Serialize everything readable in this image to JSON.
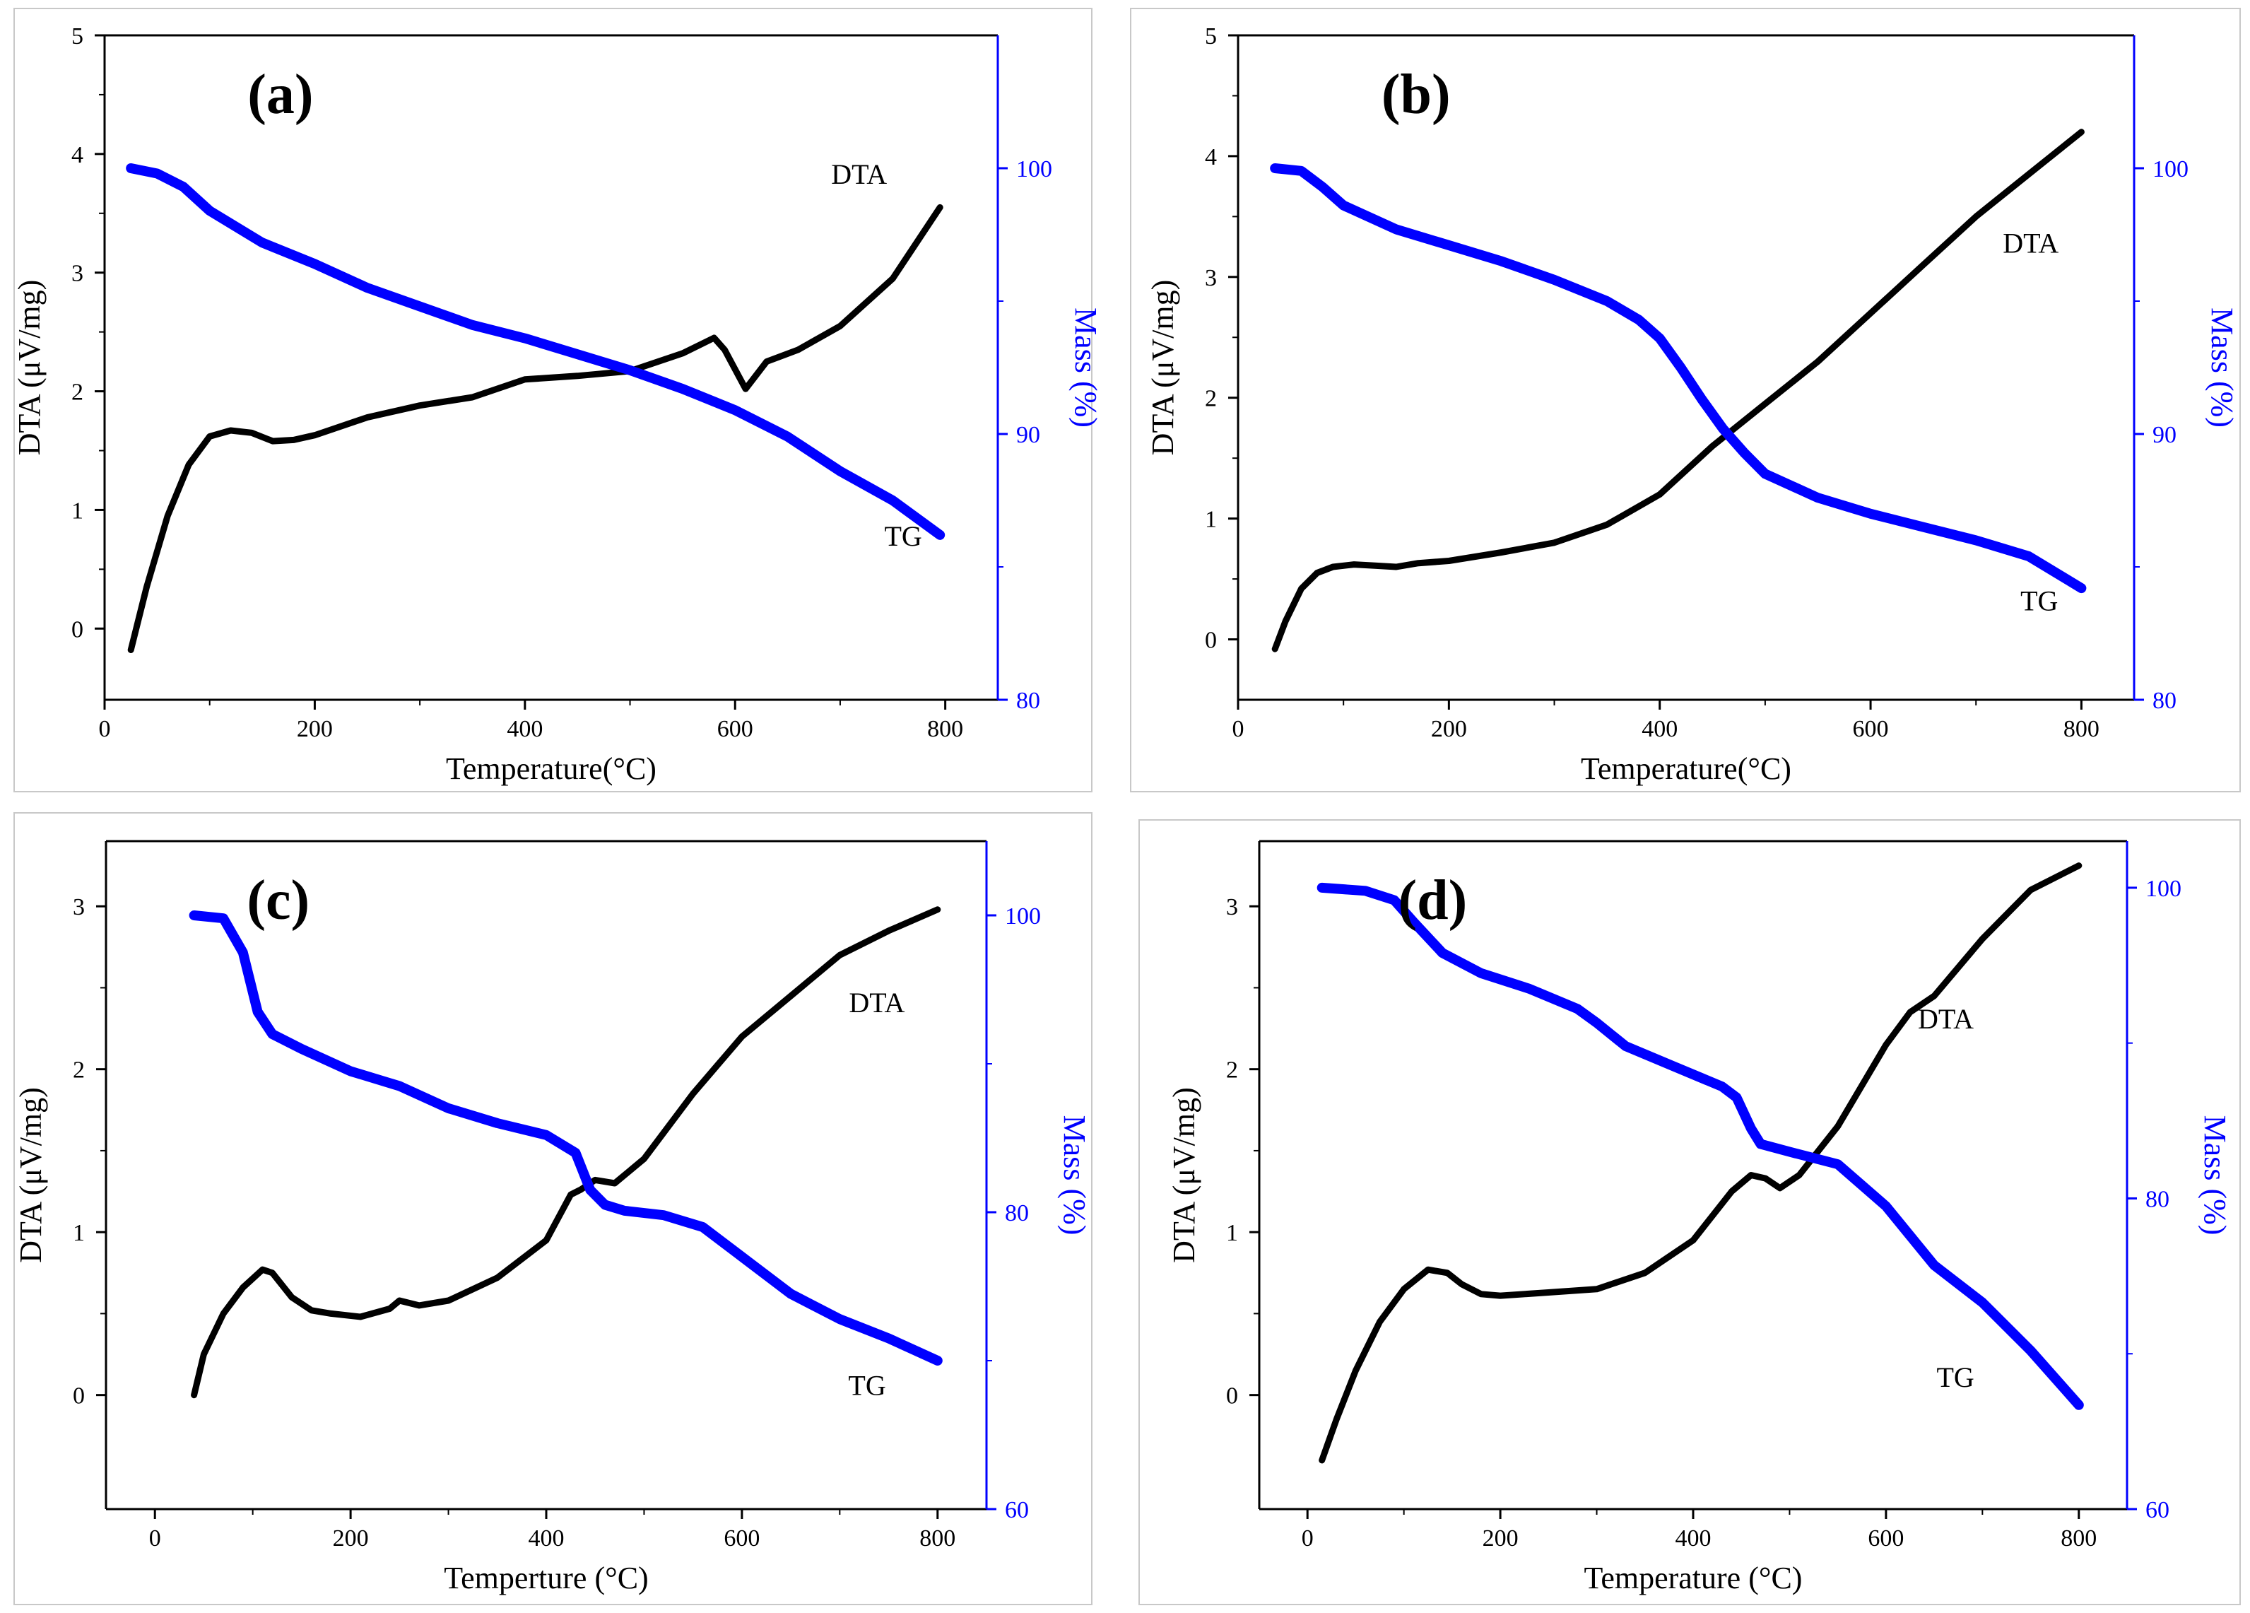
{
  "colors": {
    "dta": "#000000",
    "tg": "#0000ff",
    "axis": "#000000",
    "right_axis": "#0000ff",
    "frame": "#c8c8c8"
  },
  "chart_data": [
    {
      "type": "line",
      "panel_label": "(a)",
      "xlabel": "Temperature(°C)",
      "ylabel": "DTA (μV/mg)",
      "y2label": "Mass (%)",
      "xlim": [
        0,
        850
      ],
      "ylim": [
        -0.6,
        5
      ],
      "y2lim": [
        80,
        105
      ],
      "xticks": [
        0,
        200,
        400,
        600,
        800
      ],
      "yticks": [
        0,
        1,
        2,
        3,
        4,
        5
      ],
      "y2ticks": [
        80,
        90,
        100
      ],
      "series": [
        {
          "name": "DTA",
          "axis": "left",
          "x": [
            25,
            40,
            60,
            80,
            100,
            120,
            140,
            160,
            180,
            200,
            250,
            300,
            350,
            400,
            450,
            500,
            550,
            580,
            590,
            610,
            630,
            660,
            700,
            750,
            795
          ],
          "y": [
            -0.18,
            0.35,
            0.95,
            1.38,
            1.62,
            1.67,
            1.65,
            1.58,
            1.59,
            1.63,
            1.78,
            1.88,
            1.95,
            2.1,
            2.13,
            2.17,
            2.32,
            2.45,
            2.35,
            2.02,
            2.25,
            2.35,
            2.55,
            2.95,
            3.55
          ]
        },
        {
          "name": "TG",
          "axis": "right",
          "x": [
            25,
            50,
            75,
            100,
            150,
            200,
            250,
            300,
            350,
            400,
            450,
            500,
            550,
            600,
            650,
            700,
            750,
            795
          ],
          "y": [
            100,
            99.8,
            99.3,
            98.4,
            97.2,
            96.4,
            95.5,
            94.8,
            94.1,
            93.6,
            93.0,
            92.4,
            91.7,
            90.9,
            89.9,
            88.6,
            87.5,
            86.2
          ]
        }
      ],
      "annotations": [
        {
          "text": "DTA",
          "x": 718,
          "y": 3.75,
          "axis": "left"
        },
        {
          "text": "TG",
          "x": 760,
          "y": 0.7,
          "axis": "left"
        }
      ]
    },
    {
      "type": "line",
      "panel_label": "(b)",
      "xlabel": "Temperature(°C)",
      "ylabel": "DTA (μV/mg)",
      "y2label": "Mass (%)",
      "xlim": [
        0,
        850
      ],
      "ylim": [
        -0.5,
        5
      ],
      "y2lim": [
        80,
        105
      ],
      "xticks": [
        0,
        200,
        400,
        600,
        800
      ],
      "yticks": [
        0,
        1,
        2,
        3,
        4,
        5
      ],
      "y2ticks": [
        80,
        90,
        100
      ],
      "series": [
        {
          "name": "DTA",
          "axis": "left",
          "x": [
            35,
            45,
            60,
            75,
            90,
            110,
            130,
            150,
            170,
            200,
            250,
            300,
            350,
            400,
            450,
            500,
            550,
            600,
            650,
            700,
            750,
            800
          ],
          "y": [
            -0.08,
            0.15,
            0.42,
            0.55,
            0.6,
            0.62,
            0.61,
            0.6,
            0.63,
            0.65,
            0.72,
            0.8,
            0.95,
            1.2,
            1.6,
            1.95,
            2.3,
            2.7,
            3.1,
            3.5,
            3.85,
            4.2
          ]
        },
        {
          "name": "TG",
          "axis": "right",
          "x": [
            35,
            60,
            80,
            100,
            150,
            200,
            250,
            300,
            350,
            380,
            400,
            420,
            440,
            460,
            480,
            500,
            550,
            600,
            650,
            700,
            750,
            800
          ],
          "y": [
            100,
            99.9,
            99.3,
            98.6,
            97.7,
            97.1,
            96.5,
            95.8,
            95.0,
            94.3,
            93.6,
            92.5,
            91.3,
            90.2,
            89.3,
            88.5,
            87.6,
            87.0,
            86.5,
            86.0,
            85.4,
            84.2
          ]
        }
      ],
      "annotations": [
        {
          "text": "DTA",
          "x": 752,
          "y": 3.2,
          "axis": "left"
        },
        {
          "text": "TG",
          "x": 760,
          "y": 0.24,
          "axis": "left"
        }
      ]
    },
    {
      "type": "line",
      "panel_label": "(c)",
      "xlabel": "Temperture (°C)",
      "ylabel": "DTA (μV/mg)",
      "y2label": "Mass (%)",
      "xlim": [
        -50,
        850
      ],
      "ylim": [
        -0.7,
        3.4
      ],
      "y2lim": [
        60,
        105
      ],
      "xticks": [
        0,
        200,
        400,
        600,
        800
      ],
      "yticks": [
        0,
        1,
        2,
        3
      ],
      "y2ticks": [
        60,
        80,
        100
      ],
      "series": [
        {
          "name": "DTA",
          "axis": "left",
          "x": [
            40,
            50,
            70,
            90,
            110,
            120,
            140,
            160,
            180,
            210,
            240,
            250,
            270,
            300,
            350,
            400,
            425,
            435,
            450,
            470,
            500,
            550,
            600,
            650,
            700,
            750,
            800
          ],
          "y": [
            0.0,
            0.25,
            0.5,
            0.66,
            0.77,
            0.75,
            0.6,
            0.52,
            0.5,
            0.48,
            0.53,
            0.58,
            0.55,
            0.58,
            0.72,
            0.95,
            1.23,
            1.26,
            1.32,
            1.3,
            1.45,
            1.85,
            2.2,
            2.45,
            2.7,
            2.85,
            2.98
          ]
        },
        {
          "name": "TG",
          "axis": "right",
          "x": [
            40,
            70,
            90,
            105,
            120,
            150,
            200,
            250,
            300,
            350,
            400,
            430,
            445,
            460,
            480,
            520,
            560,
            600,
            650,
            700,
            750,
            800
          ],
          "y": [
            100,
            99.8,
            97.5,
            93.5,
            92.0,
            91.0,
            89.5,
            88.5,
            87.0,
            86.0,
            85.2,
            84.0,
            81.5,
            80.5,
            80.1,
            79.8,
            79.0,
            77.0,
            74.5,
            72.8,
            71.5,
            70.0
          ]
        }
      ],
      "annotations": [
        {
          "text": "DTA",
          "x": 738,
          "y": 2.35,
          "axis": "left"
        },
        {
          "text": "TG",
          "x": 728,
          "y": 0.0,
          "axis": "left"
        }
      ]
    },
    {
      "type": "line",
      "panel_label": "(d)",
      "xlabel": "Temperature (°C)",
      "ylabel": "DTA (μV/mg)",
      "y2label": "Mass (%)",
      "xlim": [
        -50,
        850
      ],
      "ylim": [
        -0.7,
        3.4
      ],
      "y2lim": [
        60,
        103
      ],
      "xticks": [
        0,
        200,
        400,
        600,
        800
      ],
      "yticks": [
        0,
        1,
        2,
        3
      ],
      "y2ticks": [
        60,
        80,
        100
      ],
      "series": [
        {
          "name": "DTA",
          "axis": "left",
          "x": [
            15,
            30,
            50,
            75,
            100,
            125,
            145,
            160,
            180,
            200,
            250,
            300,
            350,
            400,
            440,
            460,
            475,
            490,
            510,
            550,
            600,
            625,
            650,
            700,
            750,
            800
          ],
          "y": [
            -0.4,
            -0.15,
            0.15,
            0.45,
            0.65,
            0.77,
            0.75,
            0.68,
            0.62,
            0.61,
            0.63,
            0.65,
            0.75,
            0.95,
            1.25,
            1.35,
            1.33,
            1.27,
            1.35,
            1.65,
            2.15,
            2.35,
            2.45,
            2.8,
            3.1,
            3.25
          ]
        },
        {
          "name": "TG",
          "axis": "right",
          "x": [
            15,
            60,
            90,
            110,
            140,
            180,
            230,
            280,
            300,
            330,
            380,
            430,
            445,
            460,
            470,
            500,
            550,
            600,
            650,
            700,
            750,
            800
          ],
          "y": [
            100,
            99.8,
            99.2,
            97.8,
            95.8,
            94.5,
            93.5,
            92.2,
            91.3,
            89.8,
            88.5,
            87.2,
            86.5,
            84.5,
            83.5,
            83.0,
            82.2,
            79.5,
            75.7,
            73.3,
            70.2,
            66.7
          ]
        }
      ],
      "annotations": [
        {
          "text": "DTA",
          "x": 662,
          "y": 2.25,
          "axis": "left"
        },
        {
          "text": "TG",
          "x": 672,
          "y": 0.05,
          "axis": "left"
        }
      ]
    }
  ]
}
